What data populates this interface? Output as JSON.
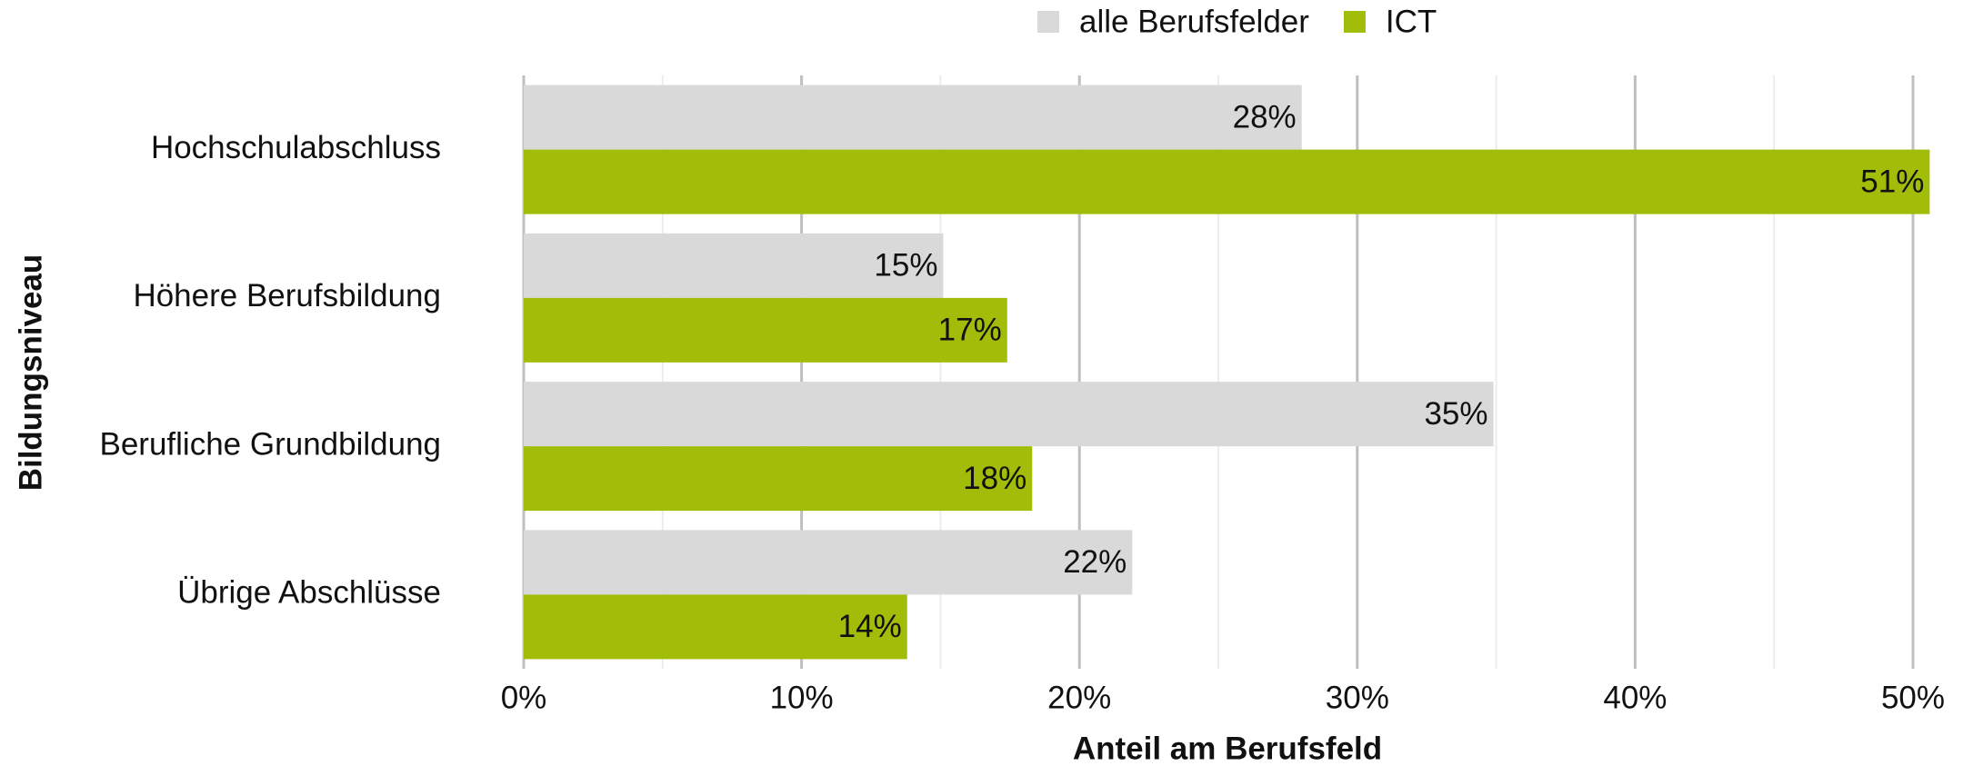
{
  "chart_data": {
    "type": "hbar",
    "x_label": "Anteil am Berufsfeld",
    "y_label": "Bildungsniveau",
    "categories": [
      "Hochschulabschluss",
      "Höhere Berufsbildung",
      "Berufliche Grundbildung",
      "Übrige Abschlüsse"
    ],
    "series": [
      {
        "name": "alle Berufsfelder",
        "color": "#d9d9d9",
        "values": [
          28.0,
          15.1,
          34.9,
          21.9
        ],
        "value_labels": [
          "28%",
          "15%",
          "35%",
          "22%"
        ]
      },
      {
        "name": "ICT",
        "color": "#a2bc0a",
        "values": [
          50.6,
          17.4,
          18.3,
          13.8
        ],
        "value_labels": [
          "51%",
          "17%",
          "18%",
          "14%"
        ]
      }
    ],
    "xlim": [
      0,
      51
    ],
    "xticks": [
      {
        "value": 0,
        "label": "0%"
      },
      {
        "value": 10,
        "label": "10%"
      },
      {
        "value": 20,
        "label": "20%"
      },
      {
        "value": 30,
        "label": "30%"
      },
      {
        "value": 40,
        "label": "40%"
      },
      {
        "value": 50,
        "label": "50%"
      }
    ],
    "xminorticks": [
      5,
      15,
      25,
      35,
      45
    ],
    "grid": true,
    "legend": "top"
  }
}
